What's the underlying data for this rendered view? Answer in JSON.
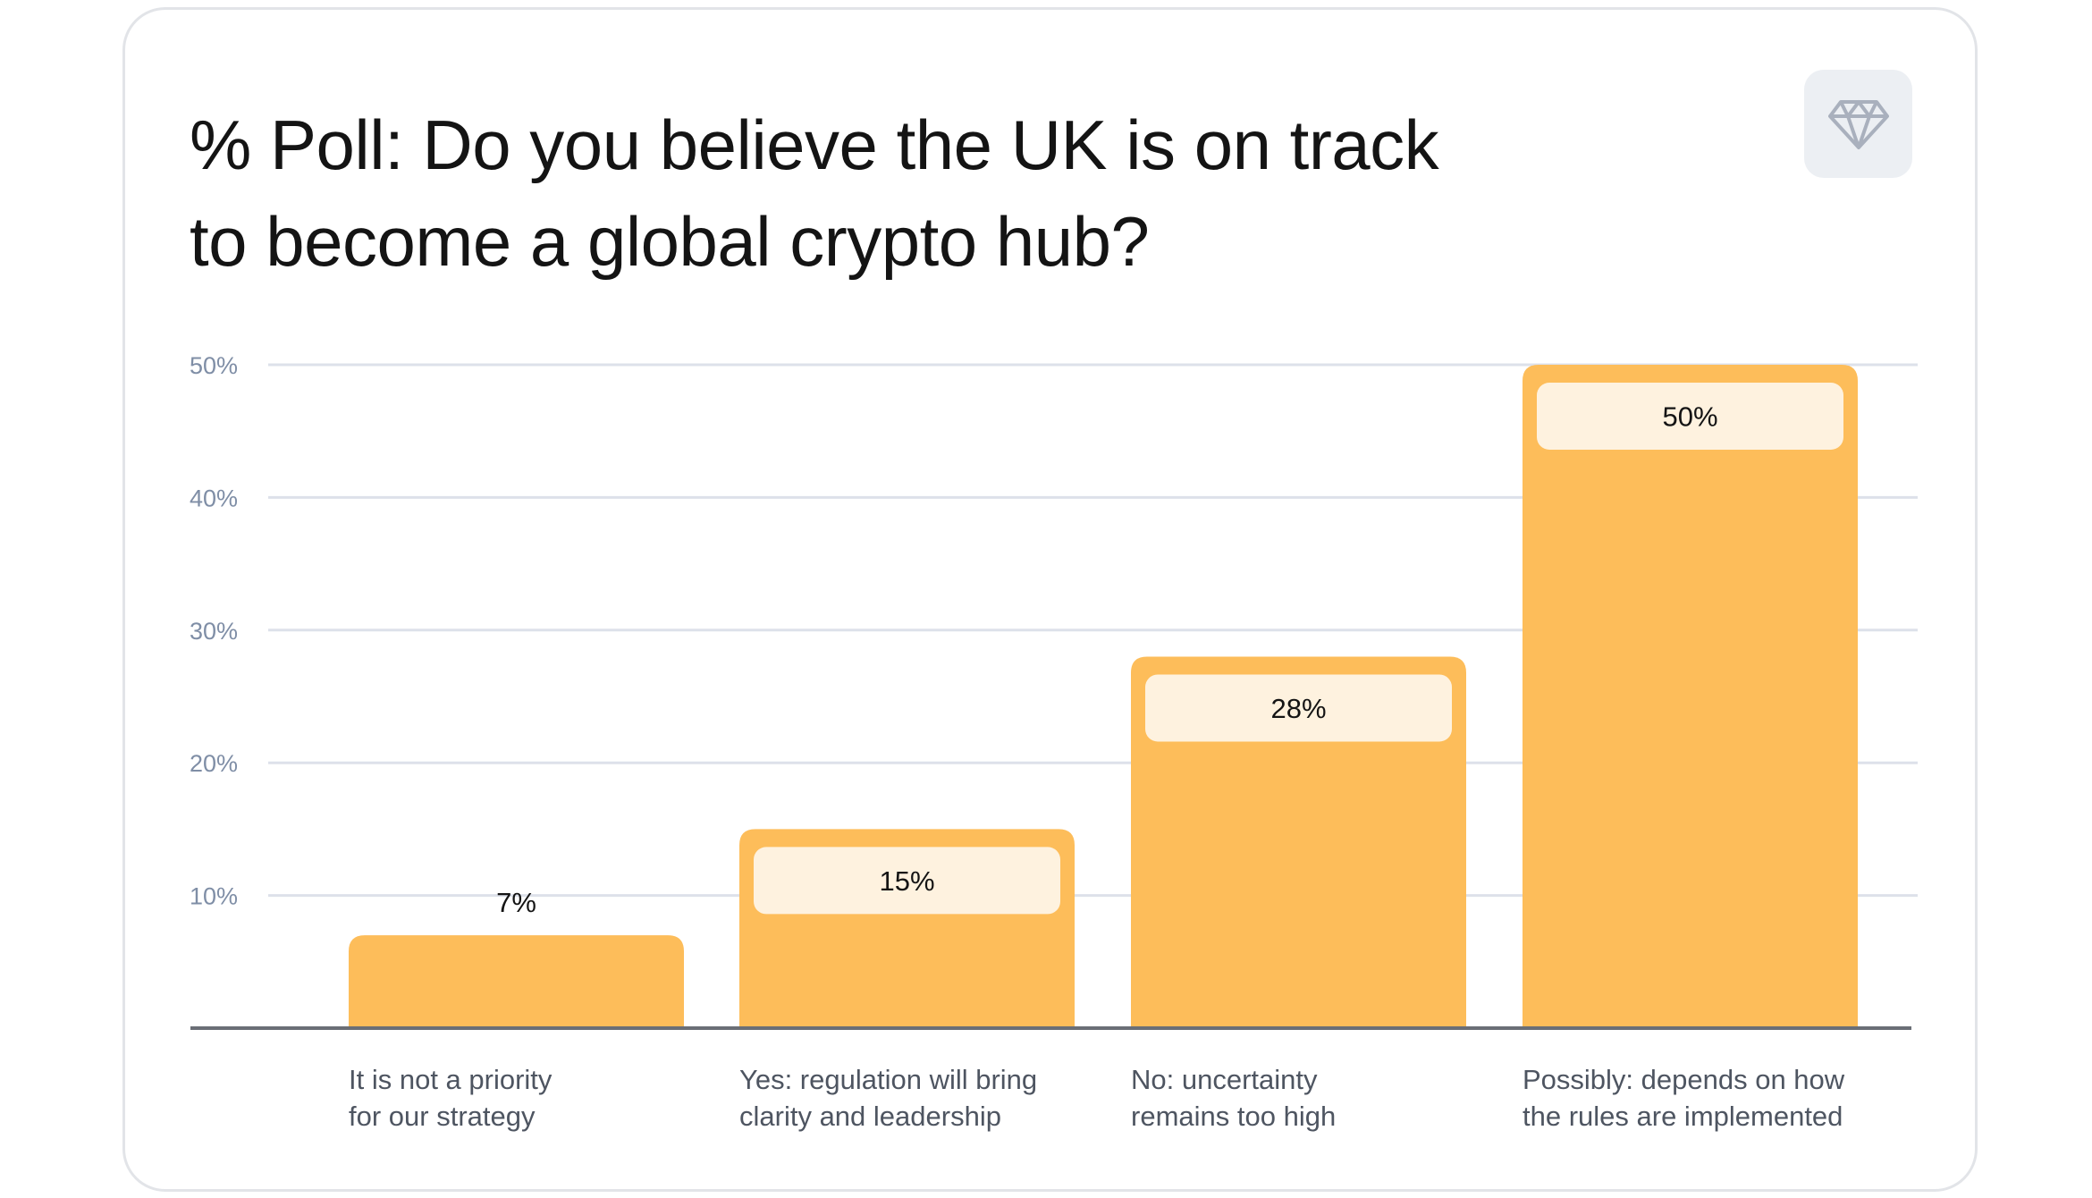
{
  "header": {
    "title_line1": "% Poll: Do you believe the UK is on track",
    "title_line2": "to become a global crypto hub?"
  },
  "badge": {
    "icon": "diamond-icon"
  },
  "colors": {
    "bar": "#fdbd5a",
    "value_pill": "#fef2df",
    "grid": "#dde1ea",
    "axis": "#6a6e76"
  },
  "chart_data": {
    "type": "bar",
    "categories": [
      [
        "It is not a priority",
        "for our strategy"
      ],
      [
        "Yes: regulation will bring",
        "clarity and leadership"
      ],
      [
        "No: uncertainty",
        "remains too high"
      ],
      [
        "Possibly: depends on how",
        "the rules are implemented"
      ]
    ],
    "values": [
      7,
      15,
      28,
      50
    ],
    "value_labels": [
      "7%",
      "15%",
      "28%",
      "50%"
    ],
    "ylim": [
      0,
      50
    ],
    "yticks": [
      10,
      20,
      30,
      40,
      50
    ],
    "ytick_labels": [
      "10%",
      "20%",
      "30%",
      "40%",
      "50%"
    ],
    "grid": true,
    "legend": "none"
  }
}
